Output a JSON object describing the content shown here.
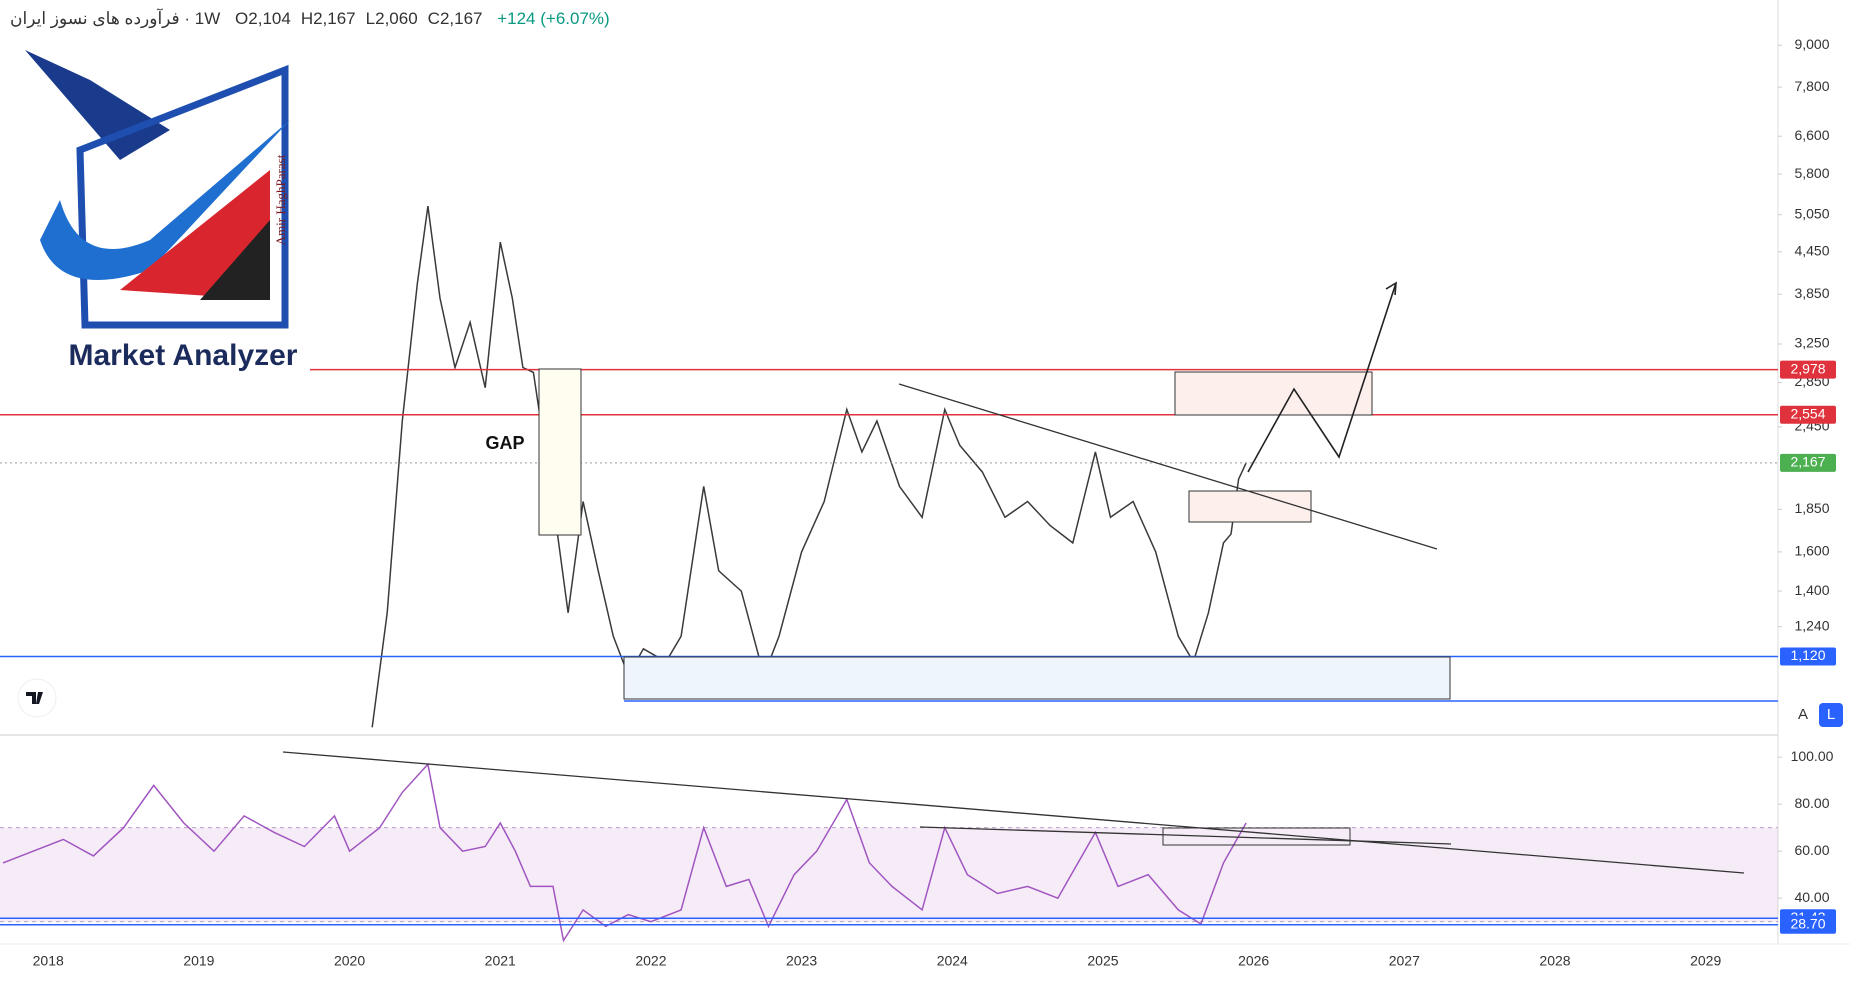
{
  "header": {
    "symbol": "فرآورده های نسوز ایران",
    "interval": "1W",
    "ohlc": [
      {
        "key": "O",
        "value": 2104,
        "label": "2,104"
      },
      {
        "key": "H",
        "value": 2167,
        "label": "2,167"
      },
      {
        "key": "L",
        "value": 2060,
        "label": "2,060"
      },
      {
        "key": "C",
        "value": 2167,
        "label": "2,167"
      }
    ],
    "change": {
      "value": 124,
      "label": "+124"
    },
    "change_pct": {
      "value": 6.07,
      "label": "(+6.07%)"
    }
  },
  "logo": {
    "title": "Market Analyzer",
    "author": "Amir HaghParast"
  },
  "annotations": [
    "GAP"
  ],
  "controls": [
    "A",
    "L"
  ],
  "chart_data": [
    {
      "type": "line",
      "log_scale": true,
      "xlim": [
        2017.68,
        2029.48
      ],
      "ylim": [
        860,
        10500
      ],
      "yticks": [
        {
          "value": 9000,
          "label": "9,000"
        },
        {
          "value": 7800,
          "label": "7,800"
        },
        {
          "value": 6600,
          "label": "6,600"
        },
        {
          "value": 5800,
          "label": "5,800"
        },
        {
          "value": 5050,
          "label": "5,050"
        },
        {
          "value": 4450,
          "label": "4,450"
        },
        {
          "value": 3850,
          "label": "3,850"
        },
        {
          "value": 3250,
          "label": "3,250"
        },
        {
          "value": 2850,
          "label": "2,850"
        },
        {
          "value": 2450,
          "label": "2,450"
        },
        {
          "value": 1850,
          "label": "1,850"
        },
        {
          "value": 1600,
          "label": "1,600"
        },
        {
          "value": 1400,
          "label": "1,400"
        },
        {
          "value": 1240,
          "label": "1,240"
        }
      ],
      "levels": [
        {
          "value": 2978,
          "label": "2,978",
          "color": "#e0323c",
          "style": "solid"
        },
        {
          "value": 2554,
          "label": "2,554",
          "color": "#e0323c",
          "style": "solid"
        },
        {
          "value": 2167,
          "label": "2,167",
          "color": "#4caf50",
          "style": "dotted"
        },
        {
          "value": 1120,
          "label": "1,120",
          "color": "#2962ff",
          "style": "solid"
        }
      ],
      "series": [
        {
          "name": "Price",
          "color": "#3a3a3a",
          "x": [
            2020.15,
            2020.25,
            2020.35,
            2020.45,
            2020.52,
            2020.6,
            2020.7,
            2020.8,
            2020.9,
            2021.0,
            2021.08,
            2021.15,
            2021.22,
            2021.38,
            2021.45,
            2021.55,
            2021.65,
            2021.75,
            2021.85,
            2021.95,
            2022.1,
            2022.2,
            2022.35,
            2022.45,
            2022.6,
            2022.75,
            2022.85,
            2023.0,
            2023.15,
            2023.3,
            2023.4,
            2023.5,
            2023.65,
            2023.8,
            2023.95,
            2024.05,
            2024.2,
            2024.35,
            2024.5,
            2024.65,
            2024.8,
            2024.95,
            2025.05,
            2025.2,
            2025.35,
            2025.5,
            2025.6,
            2025.7,
            2025.8,
            2025.85,
            2025.9,
            2025.95
          ],
          "values": [
            880,
            1300,
            2500,
            4000,
            5200,
            3800,
            3000,
            3500,
            2800,
            4600,
            3800,
            3000,
            2950,
            1700,
            1300,
            1900,
            1500,
            1200,
            1050,
            1150,
            1100,
            1200,
            2000,
            1500,
            1400,
            1050,
            1200,
            1600,
            1900,
            2600,
            2250,
            2500,
            2000,
            1800,
            2600,
            2300,
            2100,
            1800,
            1900,
            1750,
            1650,
            2250,
            1800,
            1900,
            1600,
            1200,
            1100,
            1300,
            1650,
            1700,
            2050,
            2167
          ]
        }
      ]
    },
    {
      "type": "line",
      "xlim": [
        2017.68,
        2029.48
      ],
      "ylim": [
        20.5,
        109
      ],
      "yticks": [
        {
          "value": 100,
          "label": "100.00"
        },
        {
          "value": 80,
          "label": "80.00"
        },
        {
          "value": 60,
          "label": "60.00"
        },
        {
          "value": 40,
          "label": "40.00"
        }
      ],
      "xticks": [
        2018,
        2019,
        2020,
        2021,
        2022,
        2023,
        2024,
        2025,
        2026,
        2027,
        2028,
        2029
      ],
      "band": [
        30,
        70
      ],
      "levels": [
        {
          "value": 31.43,
          "label": "31.43",
          "color": "#2962ff",
          "style": "solid"
        },
        {
          "value": 28.7,
          "label": "28.70",
          "color": "#2962ff",
          "style": "solid"
        }
      ],
      "series": [
        {
          "name": "RSI",
          "color": "#a055c0",
          "x": [
            2017.7,
            2017.9,
            2018.1,
            2018.3,
            2018.5,
            2018.7,
            2018.9,
            2019.1,
            2019.3,
            2019.5,
            2019.7,
            2019.9,
            2020.0,
            2020.2,
            2020.35,
            2020.52,
            2020.6,
            2020.75,
            2020.9,
            2021.0,
            2021.1,
            2021.2,
            2021.35,
            2021.42,
            2021.55,
            2021.7,
            2021.85,
            2022.0,
            2022.2,
            2022.35,
            2022.5,
            2022.65,
            2022.78,
            2022.95,
            2023.1,
            2023.3,
            2023.45,
            2023.6,
            2023.8,
            2023.95,
            2024.1,
            2024.3,
            2024.5,
            2024.7,
            2024.95,
            2025.1,
            2025.3,
            2025.5,
            2025.65,
            2025.8,
            2025.95
          ],
          "values": [
            55,
            60,
            65,
            58,
            70,
            88,
            72,
            60,
            75,
            68,
            62,
            75,
            60,
            70,
            85,
            97,
            70,
            60,
            62,
            72,
            60,
            45,
            45,
            22,
            35,
            28,
            33,
            30,
            35,
            70,
            45,
            48,
            28,
            50,
            60,
            82,
            55,
            45,
            35,
            70,
            50,
            42,
            45,
            40,
            68,
            45,
            50,
            35,
            29,
            55,
            72
          ]
        }
      ]
    }
  ]
}
